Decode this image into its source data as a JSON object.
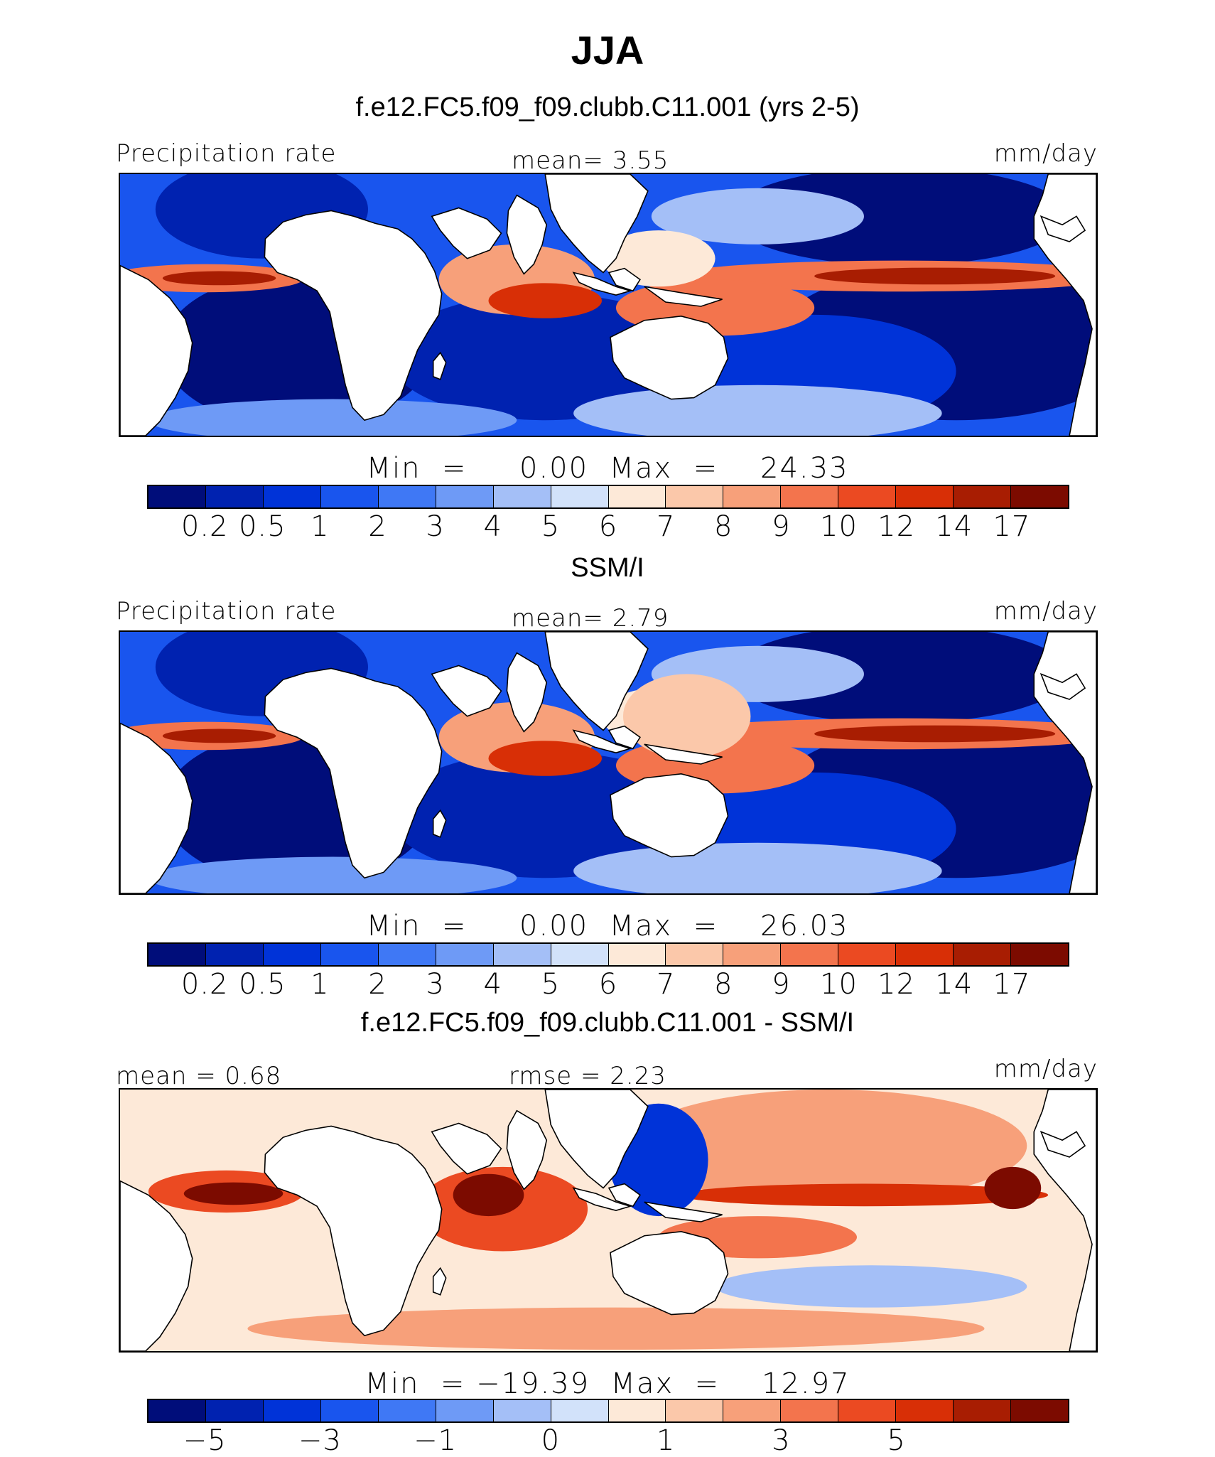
{
  "figure": {
    "title": "JJA",
    "colors": {
      "abs": [
        "#000d7a",
        "#0022b0",
        "#0033d8",
        "#1955ee",
        "#3f78f5",
        "#6e9af6",
        "#a4bff7",
        "#d2e2fa",
        "#fde9d8",
        "#fbc8aa",
        "#f7a07a",
        "#f3744d",
        "#eb4a22",
        "#d82f06",
        "#a81d02",
        "#7c0b00"
      ],
      "diff": [
        "#000d7a",
        "#0022b0",
        "#0033d8",
        "#1955ee",
        "#3f78f5",
        "#6e9af6",
        "#a4bff7",
        "#d2e2fa",
        "#fde9d8",
        "#fbc8aa",
        "#f7a07a",
        "#f3744d",
        "#eb4a22",
        "#d82f06",
        "#a81d02",
        "#7c0b00"
      ]
    }
  },
  "panels": [
    {
      "subtitle": "f.e12.FC5.f09_f09.clubb.C11.001 (yrs 2-5)",
      "left_label": "Precipitation  rate",
      "center_label": "mean=    3.55",
      "right_label": "mm/day",
      "minmax": "Min  =     0.00  Max  =    24.33",
      "ticks": [
        "0.2",
        "0.5",
        "1",
        "2",
        "3",
        "4",
        "5",
        "6",
        "7",
        "8",
        "9",
        "10",
        "12",
        "14",
        "17"
      ],
      "map_variant": "model"
    },
    {
      "subtitle": "SSM/I",
      "left_label": "Precipitation  rate",
      "center_label": "mean=    2.79",
      "right_label": "mm/day",
      "minmax": "Min  =     0.00  Max  =    26.03",
      "ticks": [
        "0.2",
        "0.5",
        "1",
        "2",
        "3",
        "4",
        "5",
        "6",
        "7",
        "8",
        "9",
        "10",
        "12",
        "14",
        "17"
      ],
      "map_variant": "obs"
    },
    {
      "subtitle": "f.e12.FC5.f09_f09.clubb.C11.001 - SSM/I",
      "left_label": "mean  =    0.68",
      "center_label": "rmse  =    2.23",
      "right_label": "mm/day",
      "minmax": "Min  = −19.39  Max  =    12.97",
      "ticks": [
        "−5",
        "",
        "−3",
        "",
        "−1",
        "",
        "0",
        "",
        "1",
        "",
        "3",
        "",
        "5",
        "",
        ""
      ],
      "map_variant": "diff"
    }
  ]
}
